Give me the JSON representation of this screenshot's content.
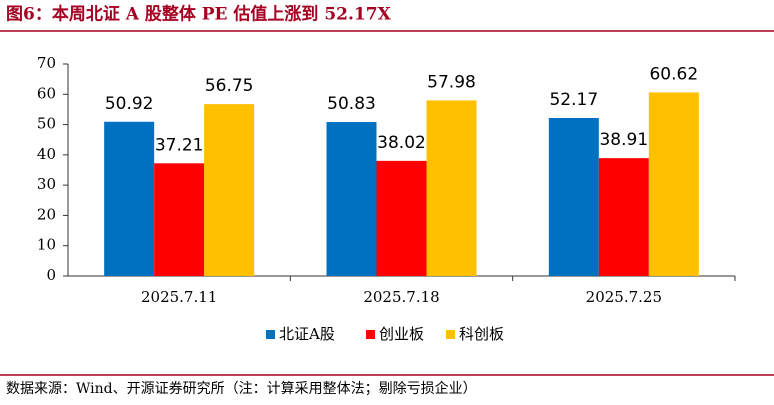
{
  "chart_data": {
    "type": "bar",
    "title": "图6：本周北证 A 股整体 PE 估值上涨到 52.17X",
    "source": "数据来源：Wind、开源证券研究所（注：计算采用整体法；剔除亏损企业）",
    "categories": [
      "2025.7.11",
      "2025.7.18",
      "2025.7.25"
    ],
    "series": [
      {
        "name": "北证A股",
        "color": "#0070c0",
        "values": [
          50.92,
          50.83,
          52.17
        ]
      },
      {
        "name": "创业板",
        "color": "#ff0000",
        "values": [
          37.21,
          38.02,
          38.91
        ]
      },
      {
        "name": "科创板",
        "color": "#ffc000",
        "values": [
          56.75,
          57.98,
          60.62
        ]
      }
    ],
    "ylim": [
      0,
      70
    ],
    "yticks": [
      0,
      10,
      20,
      30,
      40,
      50,
      60,
      70
    ],
    "grid": false,
    "legend": "bottom"
  }
}
